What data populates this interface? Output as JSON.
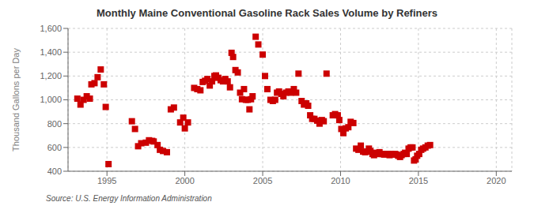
{
  "chart_data": {
    "type": "scatter",
    "title": "Monthly Maine Conventional Gasoline Rack Sales Volume by Refiners",
    "ylabel": "Thousand Gallons per Day",
    "annotations": [
      "Source: U.S. Energy Information Administration"
    ],
    "color": "#cc0000",
    "marker": "square",
    "grid": true,
    "xlim": [
      1992.5,
      2021
    ],
    "ylim": [
      400,
      1600
    ],
    "xticks": [
      1995,
      2000,
      2005,
      2010,
      2015,
      2020
    ],
    "yticks": [
      400,
      600,
      800,
      {
        "value": 1000,
        "label": "1,000"
      },
      {
        "value": 1200,
        "label": "1,200"
      },
      {
        "value": 1400,
        "label": "1,400"
      },
      {
        "value": 1600,
        "label": "1,600"
      }
    ],
    "x": [
      1993.1,
      1993.3,
      1993.5,
      1993.7,
      1993.9,
      1994.0,
      1994.2,
      1994.4,
      1994.6,
      1994.8,
      1994.92,
      1995.1,
      1996.6,
      1996.8,
      1997.0,
      1997.2,
      1997.5,
      1997.7,
      1997.9,
      1998.0,
      1998.25,
      1998.4,
      1998.6,
      1998.85,
      1999.1,
      1999.3,
      1999.7,
      1999.9,
      2000.0,
      2000.2,
      2000.6,
      2000.8,
      2001.0,
      2001.15,
      2001.3,
      2001.45,
      2001.6,
      2001.75,
      2001.9,
      2002.0,
      2002.15,
      2002.3,
      2002.45,
      2002.6,
      2002.75,
      2002.9,
      2003.0,
      2003.1,
      2003.25,
      2003.4,
      2003.55,
      2003.67,
      2003.8,
      2003.92,
      2004.05,
      2004.15,
      2004.25,
      2004.35,
      2004.55,
      2004.72,
      2005.0,
      2005.15,
      2005.3,
      2005.5,
      2005.65,
      2005.8,
      2005.92,
      2006.05,
      2006.2,
      2006.33,
      2006.5,
      2006.65,
      2006.8,
      2007.0,
      2007.15,
      2007.3,
      2007.5,
      2007.65,
      2007.8,
      2007.92,
      2008.05,
      2008.18,
      2008.32,
      2008.5,
      2008.65,
      2008.8,
      2008.92,
      2009.1,
      2009.5,
      2009.65,
      2009.82,
      2009.92,
      2010.05,
      2010.18,
      2010.33,
      2010.5,
      2010.65,
      2010.82,
      2011.0,
      2011.15,
      2011.3,
      2011.45,
      2011.58,
      2011.7,
      2011.82,
      2011.92,
      2012.05,
      2012.15,
      2012.25,
      2012.35,
      2012.5,
      2012.6,
      2012.7,
      2012.8,
      2012.92,
      2013.05,
      2013.15,
      2013.25,
      2013.35,
      2013.5,
      2013.6,
      2013.7,
      2013.82,
      2013.92,
      2014.05,
      2014.15,
      2014.25,
      2014.37,
      2014.5,
      2014.62,
      2014.72,
      2014.82,
      2014.92,
      2015.05,
      2015.18,
      2015.3,
      2015.45,
      2015.6,
      2015.75
    ],
    "values": [
      1010,
      960,
      1000,
      1030,
      1010,
      1130,
      1140,
      1190,
      1255,
      1130,
      940,
      460,
      820,
      755,
      610,
      635,
      640,
      660,
      655,
      650,
      620,
      580,
      570,
      560,
      920,
      935,
      810,
      850,
      760,
      810,
      1100,
      1090,
      1080,
      1150,
      1160,
      1175,
      1120,
      1155,
      1200,
      1205,
      1185,
      1165,
      1155,
      1175,
      1155,
      1105,
      1395,
      1360,
      1250,
      1230,
      1060,
      1005,
      1090,
      1000,
      1000,
      920,
      1005,
      1030,
      1530,
      1465,
      1380,
      1200,
      1090,
      1000,
      990,
      1000,
      1060,
      1070,
      1050,
      1030,
      1060,
      1070,
      1060,
      1090,
      1060,
      1220,
      990,
      960,
      970,
      950,
      870,
      840,
      840,
      825,
      800,
      830,
      820,
      1220,
      870,
      880,
      870,
      830,
      755,
      720,
      760,
      770,
      815,
      805,
      590,
      580,
      615,
      565,
      560,
      565,
      590,
      570,
      545,
      535,
      555,
      545,
      560,
      545,
      545,
      540,
      545,
      545,
      535,
      545,
      540,
      545,
      540,
      530,
      520,
      535,
      545,
      555,
      545,
      590,
      600,
      600,
      490,
      500,
      530,
      545,
      580,
      590,
      600,
      615,
      620
    ]
  }
}
